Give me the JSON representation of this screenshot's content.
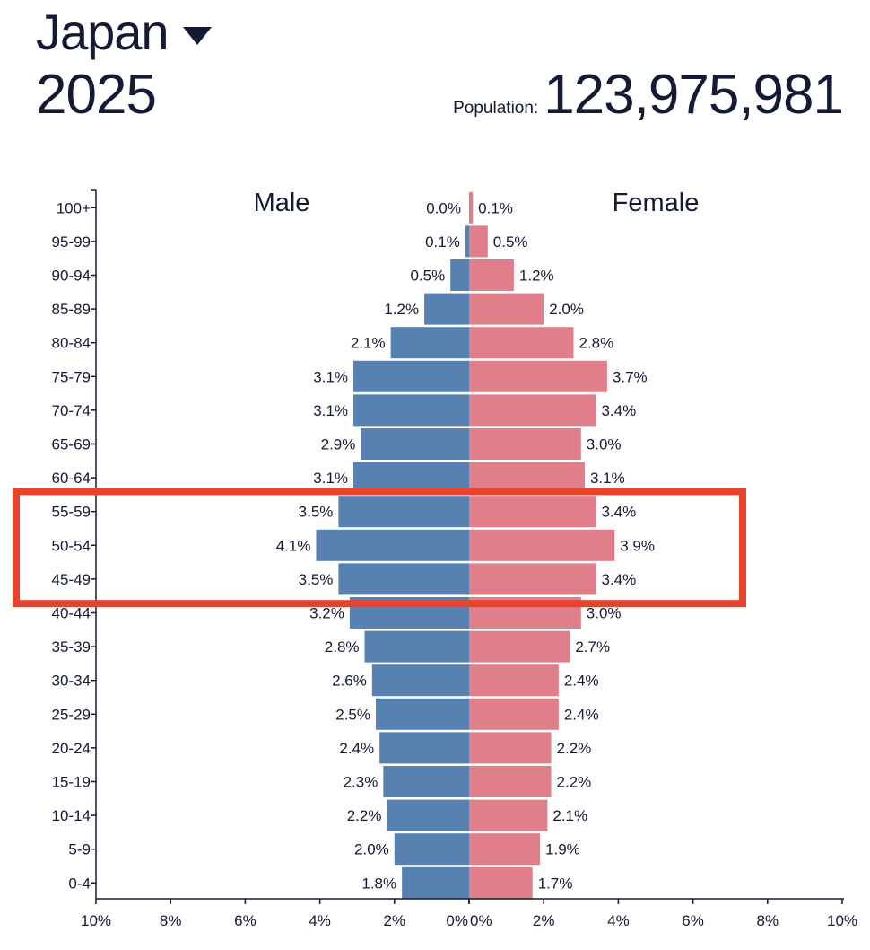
{
  "header": {
    "country": "Japan",
    "year": "2025",
    "population_label": "Population:",
    "population_value": "123,975,981"
  },
  "colors": {
    "male": "#5681b1",
    "female": "#e07e8a",
    "highlight": "#e8432c",
    "text": "#141a33"
  },
  "icons": {
    "country_dropdown": "caret-down-icon"
  },
  "chart_data": {
    "type": "bar",
    "orientation": "horizontal-population-pyramid",
    "categories": [
      "100+",
      "95-99",
      "90-94",
      "85-89",
      "80-84",
      "75-79",
      "70-74",
      "65-69",
      "60-64",
      "55-59",
      "50-54",
      "45-49",
      "40-44",
      "35-39",
      "30-34",
      "25-29",
      "20-24",
      "15-19",
      "10-14",
      "5-9",
      "0-4"
    ],
    "series": [
      {
        "name": "Male",
        "values": [
          0.0,
          0.1,
          0.5,
          1.2,
          2.1,
          3.1,
          3.1,
          2.9,
          3.1,
          3.5,
          4.1,
          3.5,
          3.2,
          2.8,
          2.6,
          2.5,
          2.4,
          2.3,
          2.2,
          2.0,
          1.8
        ]
      },
      {
        "name": "Female",
        "values": [
          0.1,
          0.5,
          1.2,
          2.0,
          2.8,
          3.7,
          3.4,
          3.0,
          3.1,
          3.4,
          3.9,
          3.4,
          3.0,
          2.7,
          2.4,
          2.4,
          2.2,
          2.2,
          2.1,
          1.9,
          1.7
        ]
      }
    ],
    "value_labels": {
      "male": [
        "0.0%",
        "0.1%",
        "0.5%",
        "1.2%",
        "2.1%",
        "3.1%",
        "3.1%",
        "2.9%",
        "3.1%",
        "3.5%",
        "4.1%",
        "3.5%",
        "3.2%",
        "2.8%",
        "2.6%",
        "2.5%",
        "2.4%",
        "2.3%",
        "2.2%",
        "2.0%",
        "1.8%"
      ],
      "female": [
        "0.1%",
        "0.5%",
        "1.2%",
        "2.0%",
        "2.8%",
        "3.7%",
        "3.4%",
        "3.0%",
        "3.1%",
        "3.4%",
        "3.9%",
        "3.4%",
        "3.0%",
        "2.7%",
        "2.4%",
        "2.4%",
        "2.2%",
        "2.2%",
        "2.1%",
        "1.9%",
        "1.7%"
      ]
    },
    "x_ticks": [
      "10%",
      "8%",
      "6%",
      "4%",
      "2%",
      "0%",
      "0%",
      "2%",
      "4%",
      "6%",
      "8%",
      "10%"
    ],
    "xlim": [
      -10,
      10
    ],
    "grid": false,
    "highlighted_categories": [
      "55-59",
      "50-54",
      "45-49"
    ]
  }
}
